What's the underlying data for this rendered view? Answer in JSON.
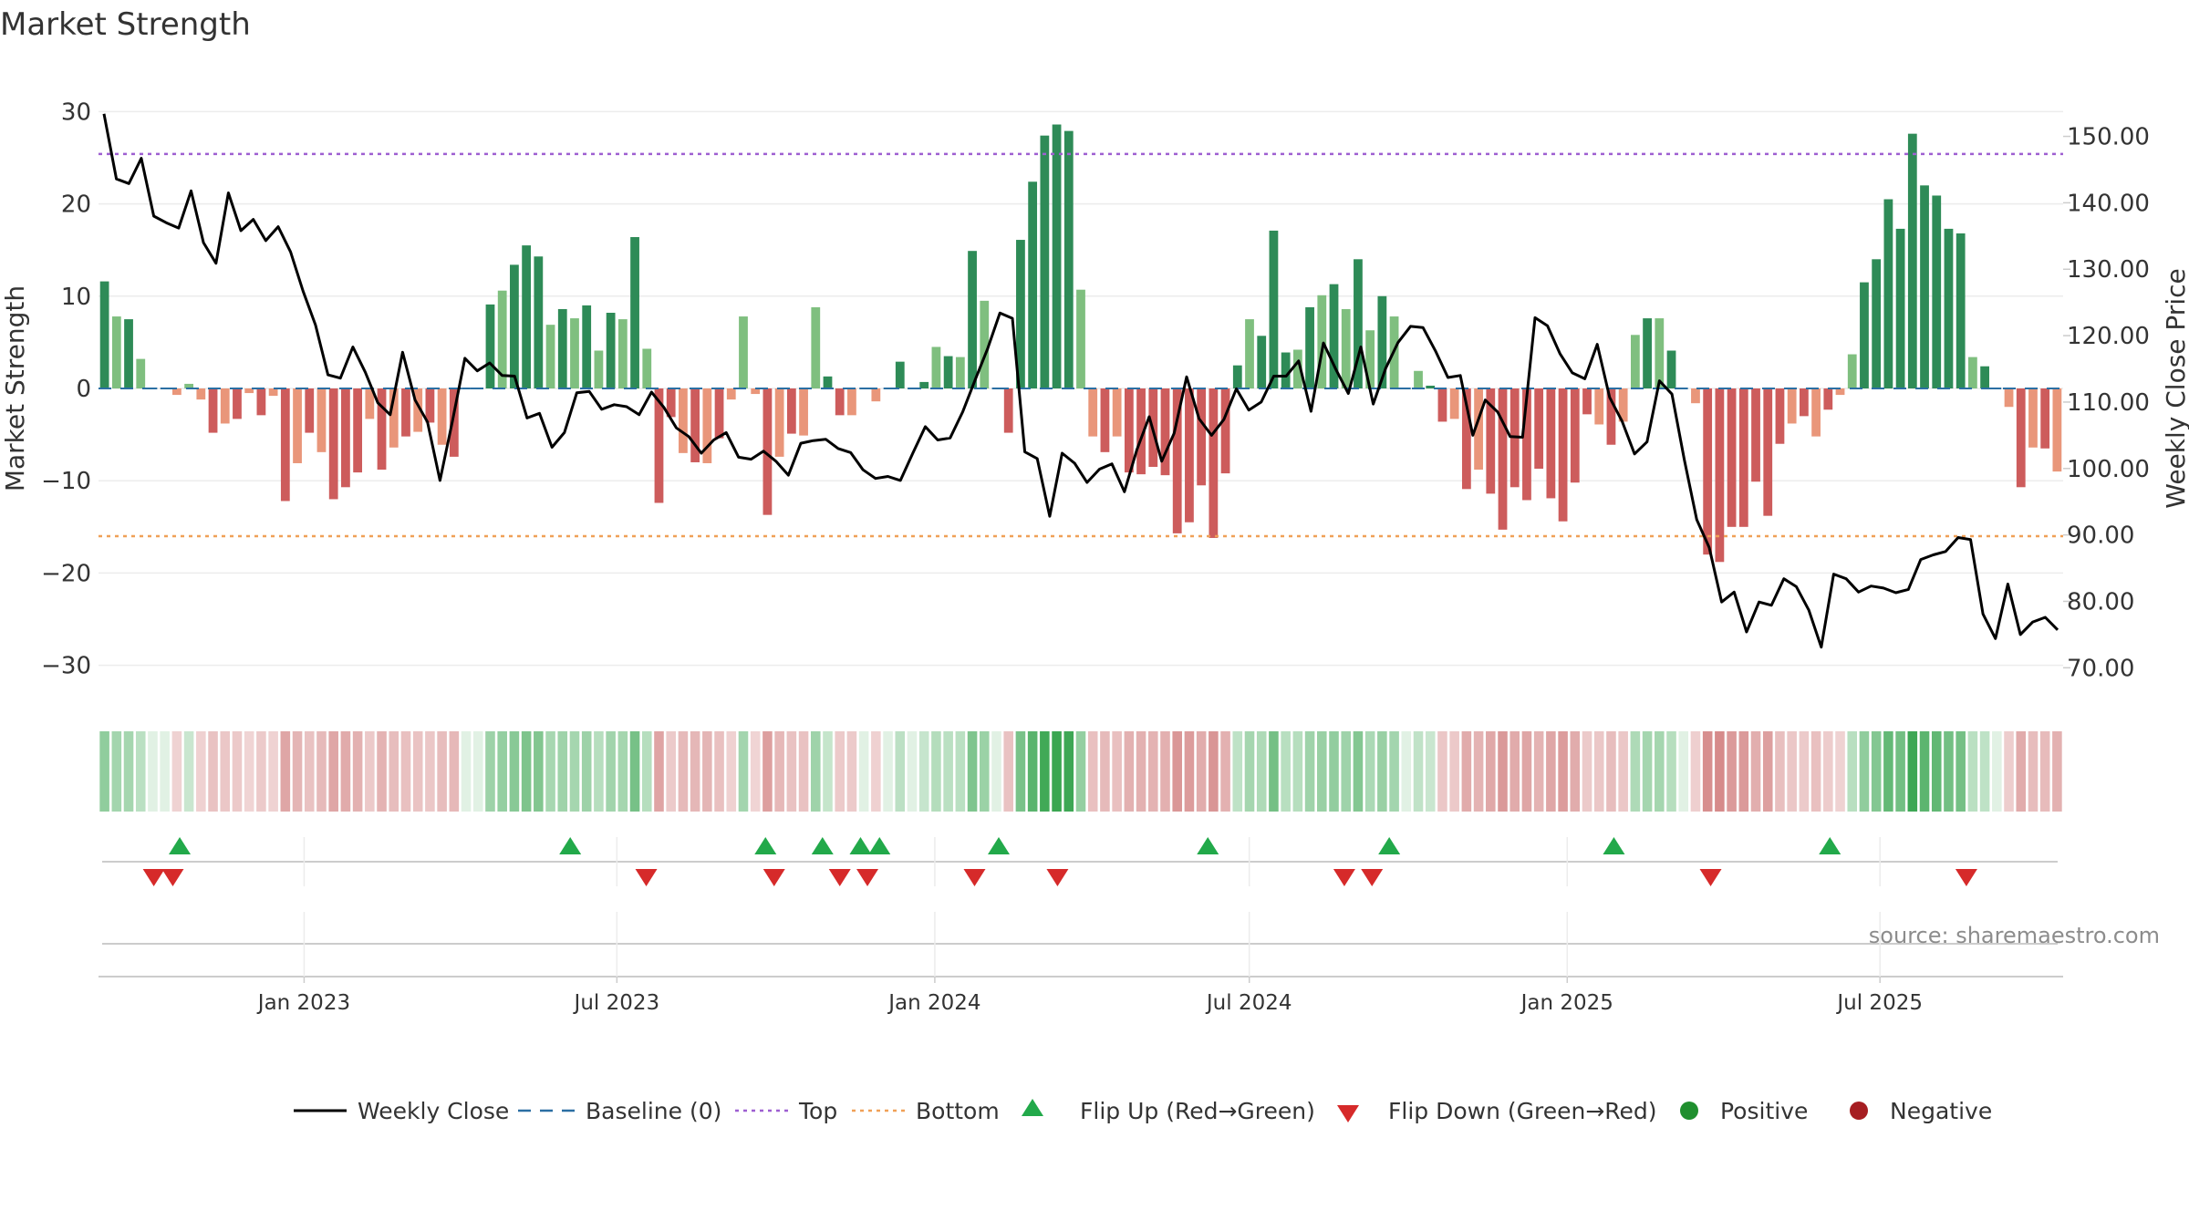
{
  "chart_data": {
    "type": "bar",
    "title": "Market Strength",
    "ylabel_left": "Market Strength",
    "ylabel_right": "Weekly Close Price",
    "ylim_left": [
      -33,
      33
    ],
    "ylim_right": [
      66.2,
      157.9
    ],
    "yticks_left": [
      -30,
      -20,
      -10,
      0,
      10,
      20,
      30
    ],
    "yticks_left_labels": [
      "−30",
      "−20",
      "−10",
      "0",
      "10",
      "20",
      "30"
    ],
    "yticks_right": [
      70,
      80,
      90,
      100,
      110,
      120,
      130,
      140,
      150
    ],
    "yticks_right_labels": [
      "70.00",
      "80.00",
      "90.00",
      "100.00",
      "110.00",
      "120.00",
      "130.00",
      "140.00",
      "150.00"
    ],
    "xrange": [
      "2022-09-04",
      "2025-10-15"
    ],
    "xticks": [
      {
        "date": "2023-01-01",
        "label": "Jan 2023"
      },
      {
        "date": "2023-07-01",
        "label": "Jul 2023"
      },
      {
        "date": "2024-01-01",
        "label": "Jan 2024"
      },
      {
        "date": "2024-07-01",
        "label": "Jul 2024"
      },
      {
        "date": "2025-01-01",
        "label": "Jan 2025"
      },
      {
        "date": "2025-07-01",
        "label": "Jul 2025"
      }
    ],
    "top_level": 25.4,
    "bottom_level": -16.0,
    "strength": [
      11.6,
      7.8,
      7.5,
      3.2,
      0.0,
      0.0,
      -0.7,
      0.5,
      -1.2,
      -4.8,
      -3.8,
      -3.3,
      -0.5,
      -2.9,
      -0.8,
      -12.2,
      -8.1,
      -4.8,
      -6.9,
      -12.0,
      -10.7,
      -9.1,
      -3.3,
      -8.8,
      -6.4,
      -5.2,
      -4.7,
      -3.7,
      -6.1,
      -7.4,
      0.0,
      0.0,
      9.1,
      10.6,
      13.4,
      15.5,
      14.3,
      6.9,
      8.6,
      7.6,
      9.0,
      4.1,
      8.2,
      7.5,
      16.4,
      4.3,
      -12.4,
      -3.1,
      -7.0,
      -8.0,
      -8.1,
      -5.4,
      -1.2,
      7.8,
      -0.6,
      -13.7,
      -7.4,
      -4.9,
      -5.1,
      8.8,
      1.3,
      -2.9,
      -2.9,
      0.0,
      -1.4,
      0.0,
      2.9,
      0.0,
      0.7,
      4.5,
      3.5,
      3.4,
      14.9,
      9.5,
      0.0,
      -4.8,
      16.1,
      22.4,
      27.4,
      28.6,
      27.9,
      10.7,
      -5.2,
      -6.9,
      -5.2,
      -9.1,
      -9.3,
      -8.5,
      -9.4,
      -15.7,
      -14.5,
      -10.5,
      -16.2,
      -9.2,
      2.5,
      7.5,
      5.7,
      17.1,
      3.9,
      4.2,
      8.8,
      10.1,
      11.3,
      8.6,
      14.0,
      6.3,
      10.0,
      7.8,
      0.0,
      1.9,
      0.3,
      -3.6,
      -3.3,
      -10.9,
      -8.8,
      -11.4,
      -15.3,
      -10.7,
      -12.1,
      -8.7,
      -11.9,
      -14.4,
      -10.2,
      -2.8,
      -3.9,
      -6.1,
      -3.6,
      5.8,
      7.6,
      7.6,
      4.1,
      0.0,
      -1.6,
      -18.0,
      -18.8,
      -15.0,
      -15.0,
      -10.1,
      -13.8,
      -6.0,
      -3.8,
      -3.0,
      -5.2,
      -2.3,
      -0.7,
      3.7,
      11.5,
      14.0,
      20.5,
      17.3,
      27.6,
      22.0,
      20.9,
      17.3,
      16.8,
      3.4,
      2.4,
      0.0,
      -2.0,
      -10.7,
      -6.4,
      -6.5,
      -9.0
    ],
    "weekly_close": [
      153.4,
      143.6,
      142.9,
      146.7,
      138.0,
      137.0,
      136.2,
      141.8,
      134.0,
      130.9,
      141.5,
      135.8,
      137.5,
      134.3,
      136.4,
      132.6,
      126.7,
      121.6,
      114.1,
      113.6,
      118.3,
      114.5,
      109.9,
      108.1,
      117.5,
      110.3,
      107.0,
      98.2,
      107.1,
      116.6,
      114.7,
      115.9,
      114.0,
      113.9,
      107.6,
      108.3,
      103.2,
      105.4,
      111.4,
      111.6,
      108.9,
      109.6,
      109.3,
      108.1,
      111.5,
      109.2,
      106.1,
      104.8,
      102.3,
      104.3,
      105.4,
      101.7,
      101.4,
      102.6,
      101.1,
      99.0,
      103.8,
      104.2,
      104.4,
      103.0,
      102.4,
      99.8,
      98.5,
      98.8,
      98.2,
      102.3,
      106.3,
      104.3,
      104.6,
      108.5,
      113.3,
      118.0,
      123.4,
      122.6,
      102.5,
      101.5,
      92.8,
      102.3,
      100.8,
      97.9,
      99.9,
      100.7,
      96.5,
      102.8,
      107.8,
      101.1,
      105.3,
      113.8,
      107.5,
      105.0,
      107.4,
      112.0,
      108.8,
      110.0,
      113.9,
      113.9,
      116.2,
      108.6,
      118.9,
      114.9,
      111.3,
      118.3,
      109.7,
      115.1,
      119.0,
      121.4,
      121.2,
      117.7,
      113.7,
      114.0,
      105.0,
      110.3,
      108.5,
      104.8,
      104.7,
      122.7,
      121.5,
      117.3,
      114.4,
      113.5,
      118.7,
      110.7,
      107.1,
      102.2,
      104.0,
      113.2,
      111.2,
      101.3,
      92.3,
      88.1,
      79.9,
      81.4,
      75.4,
      79.9,
      79.4,
      83.4,
      82.2,
      78.7,
      73.1,
      84.1,
      83.4,
      81.4,
      82.3,
      82.0,
      81.3,
      81.8,
      86.3,
      87.0,
      87.5,
      89.6,
      89.3,
      78.1,
      74.4,
      82.6,
      75.0,
      76.9,
      77.6,
      75.7
    ],
    "flip_up_x": [
      "2022-10-21",
      "2023-06-04",
      "2023-09-25",
      "2023-10-28",
      "2023-11-19",
      "2023-11-30",
      "2024-02-07",
      "2024-06-07",
      "2024-09-20",
      "2025-01-28",
      "2025-06-02"
    ],
    "flip_down_x": [
      "2022-10-06",
      "2022-10-17",
      "2023-07-18",
      "2023-09-30",
      "2023-11-07",
      "2023-11-23",
      "2024-01-24",
      "2024-03-12",
      "2024-08-25",
      "2024-09-10",
      "2025-03-25",
      "2025-08-20"
    ],
    "legend_position": "bottom",
    "legend": [
      {
        "kind": "line",
        "color": "#000000",
        "label": "Weekly Close"
      },
      {
        "kind": "dash",
        "color": "#2b6fa3",
        "label": "Baseline (0)"
      },
      {
        "kind": "dot",
        "color": "#9e5fd1",
        "label": "Top"
      },
      {
        "kind": "dot",
        "color": "#f0a057",
        "label": "Bottom"
      },
      {
        "kind": "tri-up",
        "color": "#22a94a",
        "label": "Flip Up (Red→Green)"
      },
      {
        "kind": "tri-down",
        "color": "#d62a2a",
        "label": "Flip Down (Green→Red)"
      },
      {
        "kind": "circle",
        "color": "#1f8f2e",
        "label": "Positive"
      },
      {
        "kind": "circle",
        "color": "#a61e22",
        "label": "Negative"
      }
    ],
    "source": "source: sharemaestro.com",
    "colors": {
      "pos_dark": "#2e8b57",
      "pos_light": "#7fbf7f",
      "neg_dark": "#cd5c5c",
      "neg_light": "#e9967a",
      "price": "#000000",
      "baseline": "#2b6fa3",
      "top": "#9e5fd1",
      "bottom": "#f0a057",
      "flip_up": "#22a94a",
      "flip_down": "#d62a2a"
    }
  }
}
